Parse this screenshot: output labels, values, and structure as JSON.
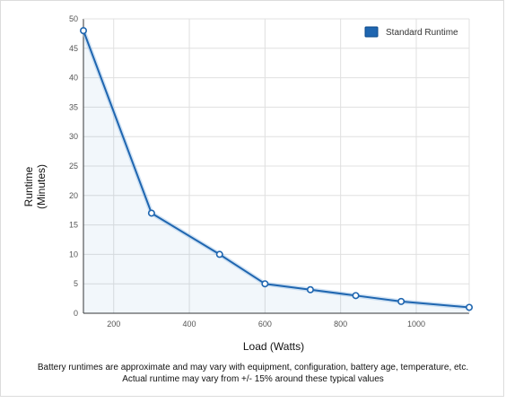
{
  "chart_data": {
    "type": "line",
    "title": "",
    "xlabel": "Load (Watts)",
    "ylabel_lines": [
      "Runtime",
      "(Minutes)"
    ],
    "x": [
      120,
      300,
      480,
      600,
      720,
      840,
      960,
      1140
    ],
    "series": [
      {
        "name": "Standard Runtime",
        "values": [
          48,
          17,
          10,
          5,
          4,
          3,
          2,
          1
        ]
      }
    ],
    "xlim": [
      120,
      1140
    ],
    "ylim": [
      0,
      50
    ],
    "xticks": [
      200,
      400,
      600,
      800,
      1000
    ],
    "yticks": [
      0,
      5,
      10,
      15,
      20,
      25,
      30,
      35,
      40,
      45,
      50
    ],
    "grid": true,
    "legend": "top-right",
    "colors": {
      "line": "#1f66b0",
      "fill": "#2a6fb8",
      "marker_fill": "#ffffff",
      "grid": "#e0e0e0"
    }
  },
  "footnote": {
    "line1": "Battery runtimes are approximate and may vary with equipment, configuration, battery age, temperature, etc.",
    "line2": "Actual runtime may vary from +/- 15% around these typical values"
  }
}
